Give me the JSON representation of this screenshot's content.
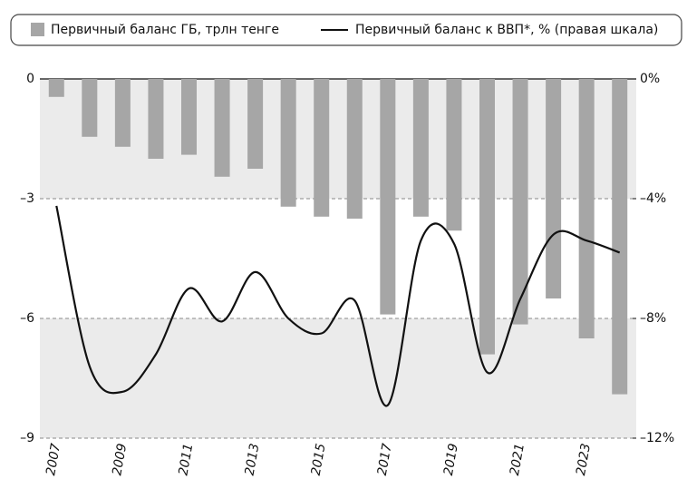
{
  "chart_data": {
    "type": "bar_line",
    "categories": [
      "2007",
      null,
      "2009",
      null,
      "2011",
      null,
      "2013",
      null,
      "2015",
      null,
      "2017",
      null,
      "2019",
      null,
      "2021",
      null,
      "2023",
      null
    ],
    "series": [
      {
        "name": "Первичный баланс ГБ, трлн тенге",
        "type": "bar",
        "color": "#a6a6a6",
        "values": [
          -0.45,
          -1.45,
          -1.7,
          -2.0,
          -1.9,
          -2.45,
          -2.25,
          -3.2,
          -3.45,
          -3.5,
          -5.9,
          -3.45,
          -3.8,
          -6.9,
          -6.15,
          -5.5,
          -6.5,
          -7.9
        ]
      },
      {
        "name": "Первичный баланс к ВВП*, % (правая шкала)",
        "type": "line",
        "axis": "y2",
        "color": "#111111",
        "values": [
          -4.24,
          -9.6,
          -10.45,
          -9.2,
          -7.0,
          -8.1,
          -6.45,
          -8.0,
          -8.5,
          -7.4,
          -10.9,
          -5.4,
          -5.5,
          -9.8,
          -7.35,
          -5.2,
          -5.4,
          -5.8
        ]
      }
    ],
    "ylim": [
      -9,
      0
    ],
    "yticks": [
      0,
      {
        "value": -3,
        "label": "–3"
      },
      {
        "value": -6,
        "label": "–6"
      },
      {
        "value": -9,
        "label": "–9"
      }
    ],
    "y2lim": [
      -12,
      0
    ],
    "y2ticks": [
      {
        "value": 0,
        "label": "0%"
      },
      {
        "value": -4,
        "label": "–4%"
      },
      {
        "value": -8,
        "label": "–8%"
      },
      {
        "value": -12,
        "label": "–12%"
      }
    ],
    "grid": true
  }
}
